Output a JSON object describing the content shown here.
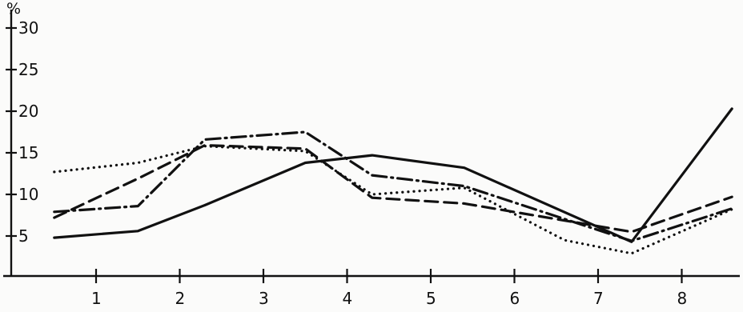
{
  "chart_data": {
    "type": "line",
    "y_unit": "%",
    "x_ticks": [
      "1",
      "2",
      "3",
      "4",
      "5",
      "6",
      "7",
      "8"
    ],
    "y_ticks": [
      "5",
      "10",
      "15",
      "20",
      "25",
      "30"
    ],
    "xlim": [
      0.5,
      8.7
    ],
    "ylim": [
      0,
      32
    ],
    "grid": false,
    "legend": "none",
    "series": [
      {
        "style": "solid",
        "color": "#111111",
        "points": [
          [
            0.5,
            4.8
          ],
          [
            1.5,
            5.6
          ],
          [
            2.3,
            8.7
          ],
          [
            3.5,
            13.8
          ],
          [
            4.3,
            14.7
          ],
          [
            5.4,
            13.2
          ],
          [
            7.4,
            4.3
          ],
          [
            8.6,
            20.3
          ]
        ]
      },
      {
        "style": "dotted",
        "color": "#111111",
        "points": [
          [
            0.5,
            12.7
          ],
          [
            1.5,
            13.8
          ],
          [
            2.3,
            15.8
          ],
          [
            3.5,
            15.2
          ],
          [
            4.3,
            10.0
          ],
          [
            5.4,
            10.8
          ],
          [
            6.6,
            4.5
          ],
          [
            7.4,
            2.9
          ],
          [
            8.6,
            8.2
          ]
        ]
      },
      {
        "style": "dashed",
        "color": "#111111",
        "points": [
          [
            0.5,
            7.2
          ],
          [
            1.5,
            11.9
          ],
          [
            2.3,
            15.9
          ],
          [
            3.5,
            15.5
          ],
          [
            4.3,
            9.6
          ],
          [
            5.4,
            8.9
          ],
          [
            7.4,
            5.5
          ],
          [
            8.6,
            9.7
          ]
        ]
      },
      {
        "style": "dash-dot",
        "color": "#111111",
        "points": [
          [
            0.5,
            7.9
          ],
          [
            1.5,
            8.6
          ],
          [
            2.3,
            16.6
          ],
          [
            3.5,
            17.5
          ],
          [
            4.3,
            12.3
          ],
          [
            5.4,
            11.0
          ],
          [
            7.4,
            4.4
          ],
          [
            8.6,
            8.3
          ]
        ]
      }
    ]
  }
}
